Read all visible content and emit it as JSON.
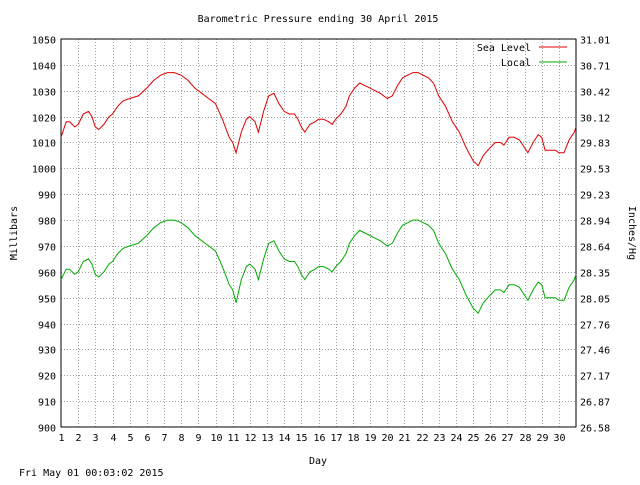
{
  "chart_data": {
    "type": "line",
    "title": "Barometric Pressure ending 30 April 2015",
    "xlabel": "Day",
    "ylabel": "Millibars",
    "y2label": "Inches/Hg",
    "xlim": [
      1,
      31
    ],
    "ylim": [
      900,
      1050
    ],
    "x_ticks": [
      "1",
      "2",
      "3",
      "4",
      "5",
      "6",
      "7",
      "8",
      "9",
      "10",
      "11",
      "12",
      "13",
      "14",
      "15",
      "16",
      "17",
      "18",
      "19",
      "20",
      "21",
      "22",
      "23",
      "24",
      "25",
      "26",
      "27",
      "28",
      "29",
      "30"
    ],
    "y_ticks": [
      "900",
      "910",
      "920",
      "930",
      "940",
      "950",
      "960",
      "970",
      "980",
      "990",
      "1000",
      "1010",
      "1020",
      "1030",
      "1040",
      "1050"
    ],
    "y2_ticks": [
      "26.58",
      "26.87",
      "27.17",
      "27.46",
      "27.76",
      "28.05",
      "28.35",
      "28.64",
      "28.94",
      "29.23",
      "29.53",
      "29.83",
      "30.12",
      "30.42",
      "30.71",
      "31.01"
    ],
    "grid": true,
    "legend_position": "top-right",
    "footer": "Fri May 01 00:03:02 2015",
    "series": [
      {
        "name": "Sea Level",
        "color": "#dd0000",
        "points": [
          [
            1.0,
            1012
          ],
          [
            1.3,
            1018
          ],
          [
            1.5,
            1018
          ],
          [
            1.8,
            1016
          ],
          [
            2.0,
            1017
          ],
          [
            2.3,
            1021
          ],
          [
            2.6,
            1022
          ],
          [
            2.8,
            1020
          ],
          [
            3.0,
            1016
          ],
          [
            3.2,
            1015
          ],
          [
            3.5,
            1017
          ],
          [
            3.8,
            1020
          ],
          [
            4.0,
            1021
          ],
          [
            4.3,
            1024
          ],
          [
            4.6,
            1026
          ],
          [
            5.0,
            1027
          ],
          [
            5.5,
            1028
          ],
          [
            6.0,
            1031
          ],
          [
            6.4,
            1034
          ],
          [
            6.8,
            1036
          ],
          [
            7.2,
            1037
          ],
          [
            7.6,
            1037
          ],
          [
            8.0,
            1036
          ],
          [
            8.4,
            1034
          ],
          [
            8.8,
            1031
          ],
          [
            9.2,
            1029
          ],
          [
            9.6,
            1027
          ],
          [
            10.0,
            1025
          ],
          [
            10.4,
            1019
          ],
          [
            10.8,
            1012
          ],
          [
            11.0,
            1010
          ],
          [
            11.2,
            1006
          ],
          [
            11.5,
            1014
          ],
          [
            11.8,
            1019
          ],
          [
            12.0,
            1020
          ],
          [
            12.3,
            1018
          ],
          [
            12.5,
            1014
          ],
          [
            12.8,
            1022
          ],
          [
            13.1,
            1028
          ],
          [
            13.4,
            1029
          ],
          [
            13.7,
            1025
          ],
          [
            14.0,
            1022
          ],
          [
            14.3,
            1021
          ],
          [
            14.6,
            1021
          ],
          [
            14.8,
            1019
          ],
          [
            15.0,
            1016
          ],
          [
            15.2,
            1014
          ],
          [
            15.5,
            1017
          ],
          [
            15.8,
            1018
          ],
          [
            16.0,
            1019
          ],
          [
            16.3,
            1019
          ],
          [
            16.6,
            1018
          ],
          [
            16.8,
            1017
          ],
          [
            17.0,
            1019
          ],
          [
            17.3,
            1021
          ],
          [
            17.6,
            1024
          ],
          [
            17.8,
            1028
          ],
          [
            18.1,
            1031
          ],
          [
            18.4,
            1033
          ],
          [
            18.7,
            1032
          ],
          [
            19.0,
            1031
          ],
          [
            19.3,
            1030
          ],
          [
            19.6,
            1029
          ],
          [
            20.0,
            1027
          ],
          [
            20.3,
            1028
          ],
          [
            20.6,
            1032
          ],
          [
            20.9,
            1035
          ],
          [
            21.2,
            1036
          ],
          [
            21.5,
            1037
          ],
          [
            21.8,
            1037
          ],
          [
            22.1,
            1036
          ],
          [
            22.4,
            1035
          ],
          [
            22.7,
            1033
          ],
          [
            23.0,
            1028
          ],
          [
            23.4,
            1024
          ],
          [
            23.8,
            1018
          ],
          [
            24.2,
            1014
          ],
          [
            24.6,
            1008
          ],
          [
            25.0,
            1003
          ],
          [
            25.3,
            1001
          ],
          [
            25.6,
            1005
          ],
          [
            26.0,
            1008
          ],
          [
            26.3,
            1010
          ],
          [
            26.6,
            1010
          ],
          [
            26.8,
            1009
          ],
          [
            27.1,
            1012
          ],
          [
            27.4,
            1012
          ],
          [
            27.7,
            1011
          ],
          [
            28.0,
            1008
          ],
          [
            28.2,
            1006
          ],
          [
            28.5,
            1010
          ],
          [
            28.8,
            1013
          ],
          [
            29.0,
            1012
          ],
          [
            29.2,
            1007
          ],
          [
            29.5,
            1007
          ],
          [
            29.8,
            1007
          ],
          [
            30.0,
            1006
          ],
          [
            30.3,
            1006
          ],
          [
            30.6,
            1011
          ],
          [
            30.9,
            1014
          ],
          [
            31.0,
            1016
          ]
        ]
      },
      {
        "name": "Local",
        "color": "#00aa00",
        "points": [
          [
            1.0,
            957
          ],
          [
            1.3,
            961
          ],
          [
            1.5,
            961
          ],
          [
            1.8,
            959
          ],
          [
            2.0,
            960
          ],
          [
            2.3,
            964
          ],
          [
            2.6,
            965
          ],
          [
            2.8,
            963
          ],
          [
            3.0,
            959
          ],
          [
            3.2,
            958
          ],
          [
            3.5,
            960
          ],
          [
            3.8,
            963
          ],
          [
            4.0,
            964
          ],
          [
            4.3,
            967
          ],
          [
            4.6,
            969
          ],
          [
            5.0,
            970
          ],
          [
            5.5,
            971
          ],
          [
            6.0,
            974
          ],
          [
            6.4,
            977
          ],
          [
            6.8,
            979
          ],
          [
            7.2,
            980
          ],
          [
            7.6,
            980
          ],
          [
            8.0,
            979
          ],
          [
            8.4,
            977
          ],
          [
            8.8,
            974
          ],
          [
            9.2,
            972
          ],
          [
            9.6,
            970
          ],
          [
            10.0,
            968
          ],
          [
            10.4,
            962
          ],
          [
            10.8,
            955
          ],
          [
            11.0,
            953
          ],
          [
            11.2,
            948
          ],
          [
            11.5,
            957
          ],
          [
            11.8,
            962
          ],
          [
            12.0,
            963
          ],
          [
            12.3,
            961
          ],
          [
            12.5,
            957
          ],
          [
            12.8,
            965
          ],
          [
            13.1,
            971
          ],
          [
            13.4,
            972
          ],
          [
            13.7,
            968
          ],
          [
            14.0,
            965
          ],
          [
            14.3,
            964
          ],
          [
            14.6,
            964
          ],
          [
            14.8,
            962
          ],
          [
            15.0,
            959
          ],
          [
            15.2,
            957
          ],
          [
            15.5,
            960
          ],
          [
            15.8,
            961
          ],
          [
            16.0,
            962
          ],
          [
            16.3,
            962
          ],
          [
            16.6,
            961
          ],
          [
            16.8,
            960
          ],
          [
            17.0,
            962
          ],
          [
            17.3,
            964
          ],
          [
            17.6,
            967
          ],
          [
            17.8,
            971
          ],
          [
            18.1,
            974
          ],
          [
            18.4,
            976
          ],
          [
            18.7,
            975
          ],
          [
            19.0,
            974
          ],
          [
            19.3,
            973
          ],
          [
            19.6,
            972
          ],
          [
            20.0,
            970
          ],
          [
            20.3,
            971
          ],
          [
            20.6,
            975
          ],
          [
            20.9,
            978
          ],
          [
            21.2,
            979
          ],
          [
            21.5,
            980
          ],
          [
            21.8,
            980
          ],
          [
            22.1,
            979
          ],
          [
            22.4,
            978
          ],
          [
            22.7,
            976
          ],
          [
            23.0,
            971
          ],
          [
            23.4,
            967
          ],
          [
            23.8,
            961
          ],
          [
            24.2,
            957
          ],
          [
            24.6,
            951
          ],
          [
            25.0,
            946
          ],
          [
            25.3,
            944
          ],
          [
            25.6,
            948
          ],
          [
            26.0,
            951
          ],
          [
            26.3,
            953
          ],
          [
            26.6,
            953
          ],
          [
            26.8,
            952
          ],
          [
            27.1,
            955
          ],
          [
            27.4,
            955
          ],
          [
            27.7,
            954
          ],
          [
            28.0,
            951
          ],
          [
            28.2,
            949
          ],
          [
            28.5,
            953
          ],
          [
            28.8,
            956
          ],
          [
            29.0,
            955
          ],
          [
            29.2,
            950
          ],
          [
            29.5,
            950
          ],
          [
            29.8,
            950
          ],
          [
            30.0,
            949
          ],
          [
            30.3,
            949
          ],
          [
            30.6,
            954
          ],
          [
            30.9,
            957
          ],
          [
            31.0,
            959
          ]
        ]
      }
    ]
  }
}
